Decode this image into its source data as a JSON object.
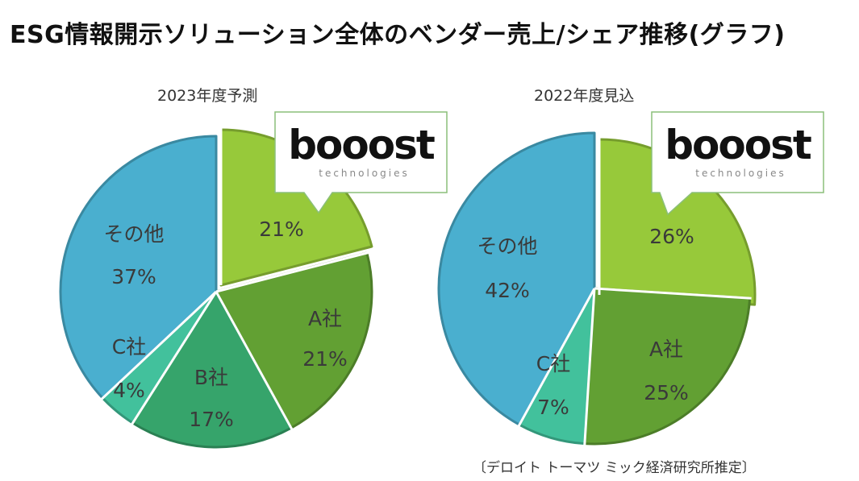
{
  "page_title": "ESG情報開示ソリューション全体のベンダー売上/シェア推移(グラフ)",
  "source_note": "〔デロイト トーマツ ミック経済研究所推定〕",
  "logo": {
    "word": "booost",
    "sub": "technologies"
  },
  "colors": {
    "booost": "#97c93a",
    "company_a": "#62a033",
    "company_b": "#36a46b",
    "company_c": "#42c19c",
    "other": "#4aafcf"
  },
  "chart_data": [
    {
      "type": "pie",
      "title": "2023年度予測",
      "categories": [
        "booost technologies",
        "A社",
        "B社",
        "C社",
        "その他"
      ],
      "values": [
        21,
        21,
        17,
        4,
        37
      ],
      "labels": [
        {
          "name": "",
          "value": "21%"
        },
        {
          "name": "A社",
          "value": "21%"
        },
        {
          "name": "B社",
          "value": "17%"
        },
        {
          "name": "C社",
          "value": "4%"
        },
        {
          "name": "その他",
          "value": "37%"
        }
      ],
      "exploded": "booost technologies"
    },
    {
      "type": "pie",
      "title": "2022年度見込",
      "categories": [
        "booost technologies",
        "A社",
        "C社",
        "その他"
      ],
      "values": [
        26,
        25,
        7,
        42
      ],
      "labels": [
        {
          "name": "",
          "value": "26%"
        },
        {
          "name": "A社",
          "value": "25%"
        },
        {
          "name": "C社",
          "value": "7%"
        },
        {
          "name": "その他",
          "value": "42%"
        }
      ],
      "exploded": "booost technologies"
    }
  ]
}
